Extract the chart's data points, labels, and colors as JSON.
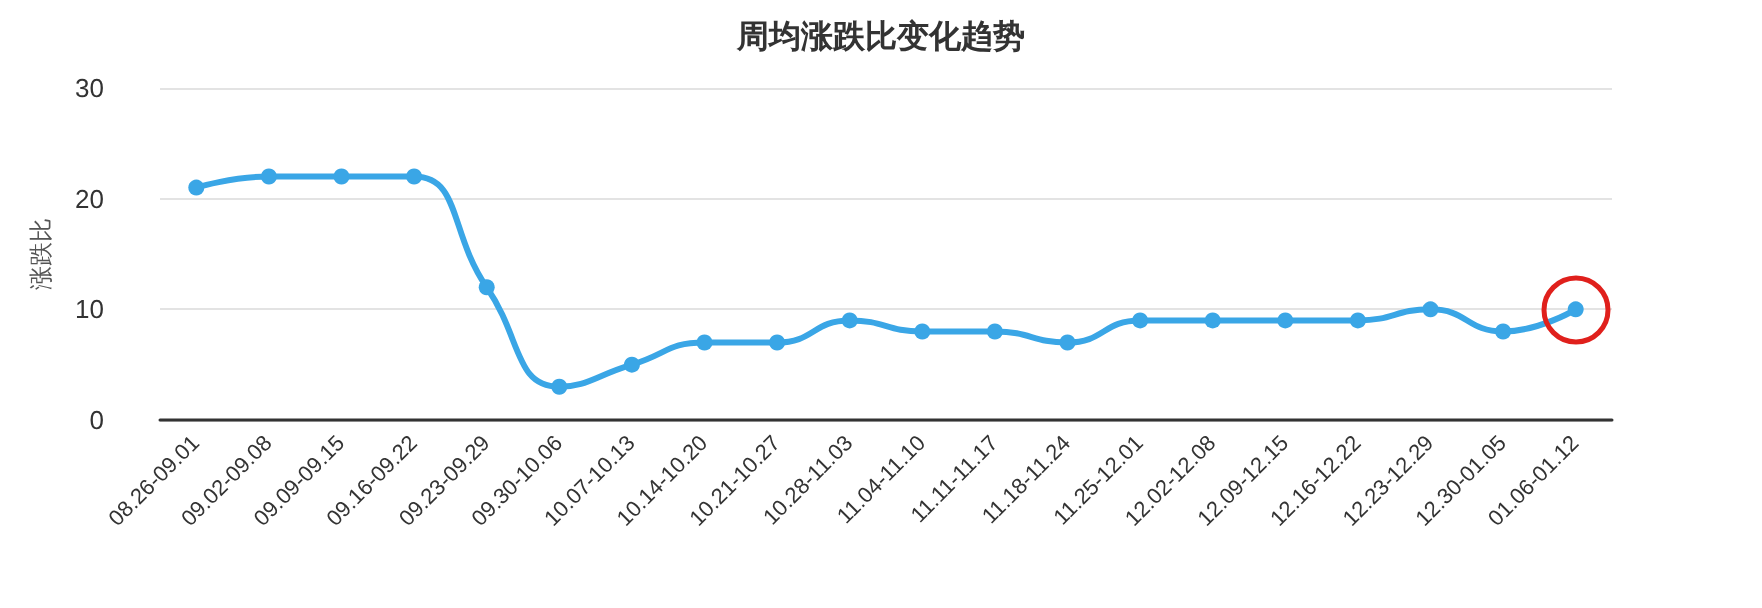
{
  "chart_data": {
    "type": "line",
    "title": "周均涨跌比变化趋势",
    "ylabel": "涨跌比",
    "categories": [
      "08.26-09.01",
      "09.02-09.08",
      "09.09-09.15",
      "09.16-09.22",
      "09.23-09.29",
      "09.30-10.06",
      "10.07-10.13",
      "10.14-10.20",
      "10.21-10.27",
      "10.28-11.03",
      "11.04-11.10",
      "11.11-11.17",
      "11.18-11.24",
      "11.25-12.01",
      "12.02-12.08",
      "12.09-12.15",
      "12.16-12.22",
      "12.23-12.29",
      "12.30-01.05",
      "01.06-01.12"
    ],
    "series": [
      {
        "color": "#3aa6e6",
        "values": [
          21,
          22,
          22,
          22,
          12,
          3,
          5,
          7,
          7,
          9,
          8,
          8,
          7,
          9,
          9,
          9,
          9,
          10,
          8,
          10
        ]
      }
    ],
    "ylim": [
      0,
      30
    ],
    "yticks": [
      0,
      10,
      20,
      30
    ],
    "grid": "y",
    "marker": "circle",
    "line_style": "solid"
  }
}
